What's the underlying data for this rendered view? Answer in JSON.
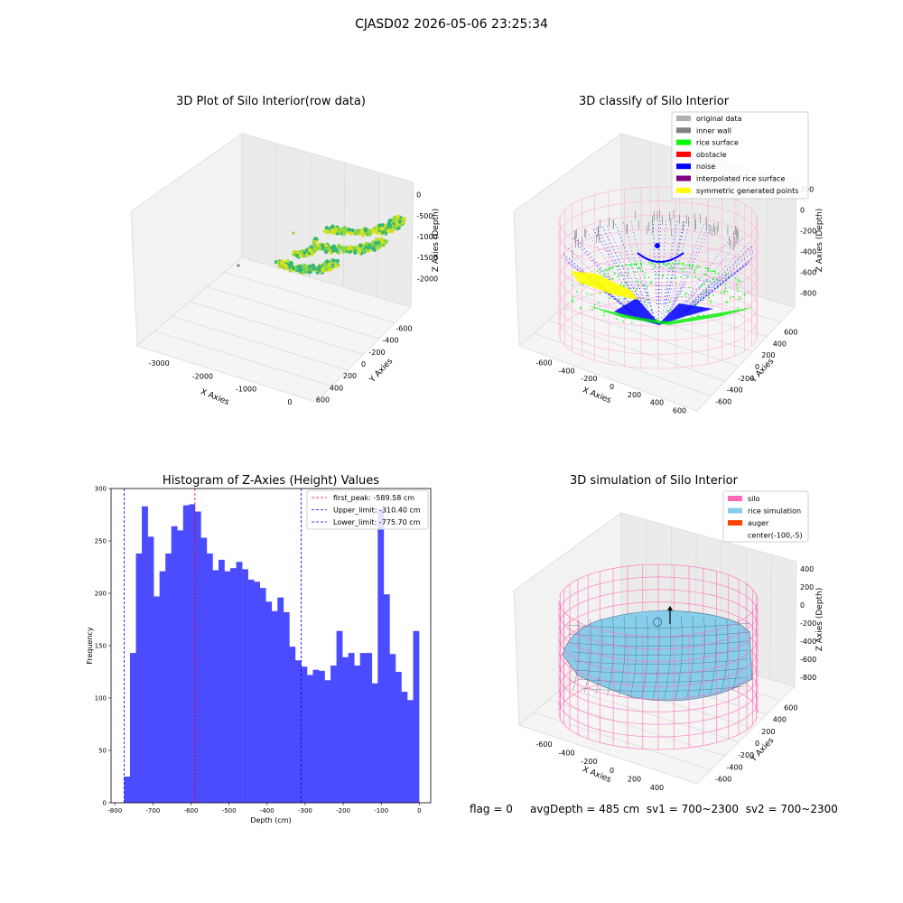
{
  "figure": {
    "suptitle": "CJASD02 2026-05-06 23:25:34"
  },
  "footer": {
    "flag": "flag = 0",
    "avg": "avgDepth = 485 cm",
    "sv1": "sv1 = 700~2300",
    "sv2": "sv2 = 700~2300"
  },
  "chart_data": [
    {
      "type": "scatter",
      "subtype": "3d",
      "title": "3D Plot of Silo Interior(row data)",
      "xlabel": "X Axies",
      "ylabel": "Y Axies",
      "zlabel": "Z Axies (Depth)",
      "x_ticks": [
        "-3000",
        "-2000",
        "-1000",
        "0"
      ],
      "y_ticks": [
        "-600",
        "-400",
        "-200",
        "0",
        "200",
        "400",
        "600"
      ],
      "z_ticks": [
        "0",
        "-500",
        "-1000",
        "-1500",
        "-2000"
      ],
      "colors": [
        "#d4e21a",
        "#8fd744",
        "#35b779"
      ]
    },
    {
      "type": "scatter",
      "subtype": "3d",
      "title": "3D classify of Silo Interior",
      "xlabel": "X Axies",
      "ylabel": "Y Axies",
      "zlabel": "Z Axies (Depth)",
      "x_ticks": [
        "-600",
        "-400",
        "-200",
        "0",
        "200",
        "400",
        "600"
      ],
      "y_ticks": [
        "-600",
        "-400",
        "-200",
        "0",
        "200",
        "400",
        "600"
      ],
      "z_ticks": [
        "200",
        "0",
        "-200",
        "-400",
        "-600",
        "-800"
      ],
      "legend_position": "top-right",
      "legend": [
        {
          "label": "original data",
          "color": "#b0b0b0"
        },
        {
          "label": "inner wall",
          "color": "#808080"
        },
        {
          "label": "rice surface",
          "color": "#00ff00"
        },
        {
          "label": "obstacle",
          "color": "#ff0000"
        },
        {
          "label": "noise",
          "color": "#0000ff"
        },
        {
          "label": "interpolated rice surface",
          "color": "#800080"
        },
        {
          "label": "symmetric generated points",
          "color": "#ffff00"
        }
      ]
    },
    {
      "type": "bar",
      "subtype": "histogram",
      "title": "Histogram of Z-Axies (Height) Values",
      "xlabel": "Depth (cm)",
      "ylabel": "Frequency",
      "xlim": [
        -810,
        30
      ],
      "ylim": [
        0,
        300
      ],
      "x_ticks": [
        "-800",
        "-700",
        "-600",
        "-500",
        "-400",
        "-300",
        "-200",
        "-100",
        "0"
      ],
      "y_ticks": [
        "0",
        "50",
        "100",
        "150",
        "200",
        "250",
        "300"
      ],
      "bin_start": -775.7,
      "bin_width": 15.5,
      "values": [
        25,
        143,
        238,
        283,
        254,
        197,
        221,
        238,
        264,
        260,
        284,
        285,
        278,
        253,
        238,
        222,
        232,
        221,
        224,
        230,
        223,
        213,
        211,
        205,
        192,
        183,
        196,
        182,
        149,
        136,
        130,
        122,
        127,
        126,
        117,
        131,
        164,
        139,
        143,
        131,
        143,
        143,
        114,
        280,
        199,
        142,
        125,
        106,
        98,
        164
      ],
      "bar_color": "#4b4bff",
      "lines": [
        {
          "label": "first_peak: -589.58 cm",
          "x": -589.58,
          "color": "#ff0000"
        },
        {
          "label": "Upper_limit: -310.40 cm",
          "x": -310.4,
          "color": "#0000ff"
        },
        {
          "label": "Lower_limit: -775.70 cm",
          "x": -775.7,
          "color": "#0000ff"
        }
      ],
      "legend_position": "top-right"
    },
    {
      "type": "area",
      "subtype": "3d surface",
      "title": "3D simulation of Silo Interior",
      "xlabel": "X Axies",
      "ylabel": "Y Axies",
      "zlabel": "Z Axies (Depth)",
      "x_ticks": [
        "-600",
        "-400",
        "-200",
        "0",
        "200",
        "400"
      ],
      "y_ticks": [
        "-600",
        "-400",
        "-200",
        "0",
        "200",
        "400",
        "600"
      ],
      "z_ticks": [
        "400",
        "200",
        "0",
        "-200",
        "-400",
        "-600",
        "-800"
      ],
      "legend_position": "top-right",
      "legend": [
        {
          "label": "silo",
          "color": "#ff69b4"
        },
        {
          "label": "rice simulation",
          "color": "#87ceeb"
        },
        {
          "label": "auger",
          "color": "#ff4500"
        },
        {
          "label": "center(-100,-5)",
          "color": ""
        }
      ]
    }
  ]
}
